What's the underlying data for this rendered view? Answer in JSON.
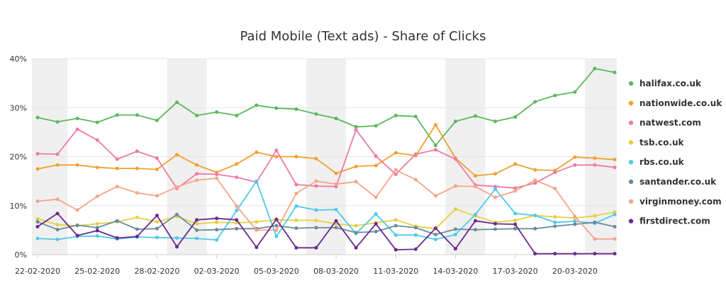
{
  "chart_data": {
    "type": "line",
    "title": "Paid Mobile (Text ads) - Share of Clicks",
    "ylim": [
      0,
      40
    ],
    "yticks": [
      "0%",
      "10%",
      "20%",
      "30%",
      "40%"
    ],
    "ytick_values": [
      0,
      10,
      20,
      30,
      40
    ],
    "x": [
      "22-02-2020",
      "23-02-2020",
      "24-02-2020",
      "25-02-2020",
      "26-02-2020",
      "27-02-2020",
      "28-02-2020",
      "29-02-2020",
      "01-03-2020",
      "02-03-2020",
      "03-03-2020",
      "04-03-2020",
      "05-03-2020",
      "06-03-2020",
      "07-03-2020",
      "08-03-2020",
      "09-03-2020",
      "10-03-2020",
      "11-03-2020",
      "12-03-2020",
      "13-03-2020",
      "14-03-2020",
      "15-03-2020",
      "16-03-2020",
      "17-03-2020",
      "18-03-2020",
      "19-03-2020",
      "20-03-2020",
      "21-03-2020",
      "22-03-2020"
    ],
    "x_tick_labels": [
      "22-02-2020",
      "25-02-2020",
      "28-02-2020",
      "02-03-2020",
      "05-03-2020",
      "08-03-2020",
      "11-03-2020",
      "14-03-2020",
      "17-03-2020",
      "20-03-2020"
    ],
    "x_tick_indices": [
      0,
      3,
      6,
      9,
      12,
      15,
      18,
      21,
      24,
      27
    ],
    "weekend_bands": [
      [
        0,
        1
      ],
      [
        7,
        8
      ],
      [
        14,
        15
      ],
      [
        21,
        22
      ],
      [
        28,
        29
      ]
    ],
    "grid": true,
    "legend_position": "right",
    "series": [
      {
        "name": "halifax.co.uk",
        "color": "#5cb85c",
        "values": [
          28.0,
          27.1,
          27.8,
          27.0,
          28.5,
          28.5,
          27.4,
          31.1,
          28.4,
          29.1,
          28.4,
          30.5,
          29.9,
          29.7,
          28.7,
          27.8,
          26.1,
          26.3,
          28.4,
          28.2,
          22.3,
          27.2,
          28.3,
          27.2,
          28.1,
          31.2,
          32.5,
          33.2,
          38.0,
          37.2
        ]
      },
      {
        "name": "nationwide.co.uk",
        "color": "#f0a030",
        "values": [
          17.5,
          18.3,
          18.3,
          17.8,
          17.6,
          17.6,
          17.4,
          20.4,
          18.3,
          16.8,
          18.5,
          20.9,
          20.0,
          20.0,
          19.6,
          16.6,
          18.0,
          18.2,
          20.8,
          20.2,
          26.5,
          19.7,
          16.1,
          16.5,
          18.5,
          17.3,
          17.2,
          19.9,
          19.7,
          19.4
        ]
      },
      {
        "name": "natwest.com",
        "color": "#ee7aa8",
        "values": [
          20.6,
          20.5,
          25.6,
          23.4,
          19.5,
          21.1,
          19.7,
          13.5,
          16.5,
          16.4,
          15.8,
          14.8,
          21.3,
          14.3,
          14.0,
          13.9,
          25.5,
          20.1,
          16.4,
          20.5,
          21.4,
          19.5,
          14.2,
          13.9,
          13.6,
          14.6,
          16.8,
          18.3,
          18.3,
          17.8
        ]
      },
      {
        "name": "tsb.co.uk",
        "color": "#e3d140",
        "values": [
          7.3,
          6.1,
          5.9,
          6.3,
          6.7,
          7.6,
          6.7,
          7.8,
          6.3,
          6.6,
          6.5,
          6.7,
          7.1,
          7.0,
          7.0,
          6.3,
          5.9,
          6.5,
          7.1,
          5.8,
          5.3,
          9.3,
          7.9,
          6.6,
          7.0,
          8.0,
          7.7,
          7.5,
          7.9,
          8.7
        ]
      },
      {
        "name": "rbs.co.uk",
        "color": "#4fc9ea",
        "values": [
          3.3,
          3.1,
          3.7,
          3.8,
          3.2,
          3.6,
          3.5,
          3.4,
          3.3,
          3.0,
          9.0,
          15.0,
          3.7,
          9.9,
          9.1,
          9.2,
          4.3,
          8.3,
          4.0,
          4.0,
          3.1,
          4.1,
          8.2,
          13.4,
          8.4,
          8.0,
          6.6,
          6.8,
          6.4,
          8.2
        ]
      },
      {
        "name": "santander.co.uk",
        "color": "#6a8b9b",
        "values": [
          6.7,
          5.1,
          6.0,
          5.5,
          6.9,
          5.2,
          5.3,
          8.2,
          5.0,
          5.1,
          5.3,
          5.3,
          5.9,
          5.4,
          5.5,
          5.5,
          4.5,
          4.7,
          5.9,
          5.5,
          4.1,
          5.2,
          5.1,
          5.2,
          5.3,
          5.3,
          5.8,
          6.2,
          6.6,
          5.7
        ]
      },
      {
        "name": "virginmoney.com",
        "color": "#f6a58a",
        "values": [
          10.9,
          11.3,
          9.1,
          11.9,
          13.9,
          12.6,
          12.0,
          13.8,
          15.2,
          15.6,
          9.9,
          5.0,
          5.0,
          12.5,
          15.0,
          14.4,
          14.9,
          11.7,
          17.3,
          15.3,
          12.0,
          14.0,
          13.9,
          11.7,
          13.0,
          15.2,
          13.5,
          7.8,
          3.2,
          3.2
        ]
      },
      {
        "name": "firstdirect.com",
        "color": "#6a2a8f",
        "values": [
          5.7,
          8.4,
          3.9,
          4.9,
          3.4,
          3.7,
          8.0,
          1.6,
          7.1,
          7.4,
          7.1,
          1.5,
          7.2,
          1.4,
          1.4,
          6.9,
          1.4,
          6.3,
          1.0,
          1.1,
          5.4,
          1.2,
          6.9,
          6.3,
          6.2,
          0.2,
          0.2,
          0.2,
          0.2,
          0.2
        ]
      }
    ]
  }
}
